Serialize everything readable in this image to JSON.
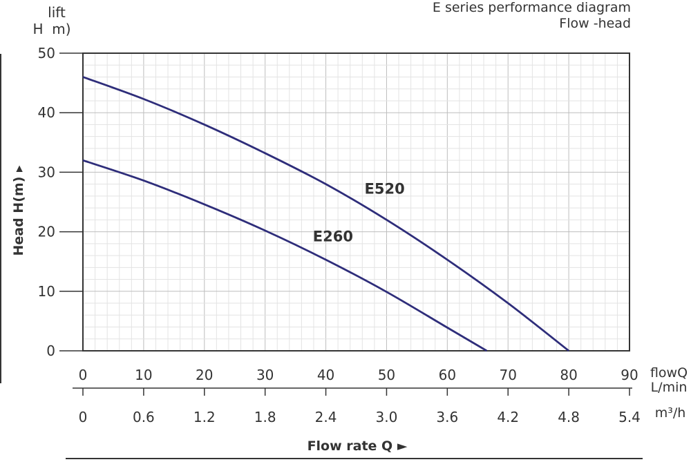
{
  "chart_data": {
    "type": "line",
    "title": "E series performance diagram",
    "subtitle": "Flow -head",
    "y_top_label": {
      "line1": "lift",
      "line2": "H  m)"
    },
    "ylabel": "Head H(m) ▸",
    "xlabel": "Flow rate Q ►",
    "x_unit_primary": {
      "line1": "flowQ",
      "line2": "L/min"
    },
    "x_unit_secondary": "m³/h",
    "xlim": [
      0,
      90
    ],
    "ylim": [
      0,
      50
    ],
    "x_ticks": [
      "0",
      "10",
      "20",
      "30",
      "40",
      "50",
      "60",
      "70",
      "80",
      "90"
    ],
    "x_ticks_secondary": [
      "0",
      "0.6",
      "1.2",
      "1.8",
      "2.4",
      "3.0",
      "3.6",
      "4.2",
      "4.8",
      "5.4"
    ],
    "y_ticks": [
      "0",
      "10",
      "20",
      "30",
      "40",
      "50"
    ],
    "grid": true,
    "line_color": "#2e2d7a",
    "series": [
      {
        "name": "E520",
        "x": [
          0,
          10,
          20,
          30,
          40,
          50,
          60,
          70,
          80
        ],
        "y": [
          46,
          42.3,
          38,
          33.2,
          28,
          22,
          15.3,
          8,
          0
        ]
      },
      {
        "name": "E260",
        "x": [
          0,
          10,
          20,
          30,
          40,
          50,
          60,
          66.5
        ],
        "y": [
          32,
          28.6,
          24.6,
          20.2,
          15.3,
          9.9,
          3.9,
          0
        ]
      }
    ]
  }
}
